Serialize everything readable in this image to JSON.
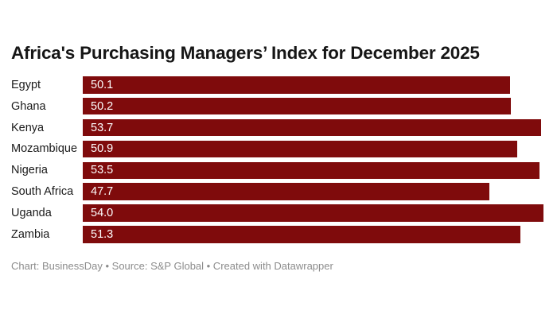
{
  "title": "Africa's Purchasing Managers’ Index for December 2025",
  "footer": {
    "text": "Chart: BusinessDay  • Source: S&P Global • Created with Datawrapper"
  },
  "colors": {
    "background": "#ffffff",
    "bar": "#7f0b0c",
    "title_text": "#161616",
    "category_text": "#1a1a1a",
    "value_text": "#ffffff",
    "footer_text": "#8c8c8c"
  },
  "chart_data": {
    "type": "bar",
    "orientation": "horizontal",
    "title": "Africa's Purchasing Managers’ Index for December 2025",
    "categories": [
      "Egypt",
      "Ghana",
      "Kenya",
      "Mozambique",
      "Nigeria",
      "South Africa",
      "Uganda",
      "Zambia"
    ],
    "values": [
      50.1,
      50.2,
      53.7,
      50.9,
      53.5,
      47.7,
      54.0,
      51.3
    ],
    "value_labels": [
      "50.1",
      "50.2",
      "53.7",
      "50.9",
      "53.5",
      "47.7",
      "54.0",
      "51.3"
    ],
    "xlim": [
      0,
      54
    ],
    "xlabel": "",
    "ylabel": "",
    "grid": false,
    "legend": false,
    "value_label_position": "inside-start"
  }
}
